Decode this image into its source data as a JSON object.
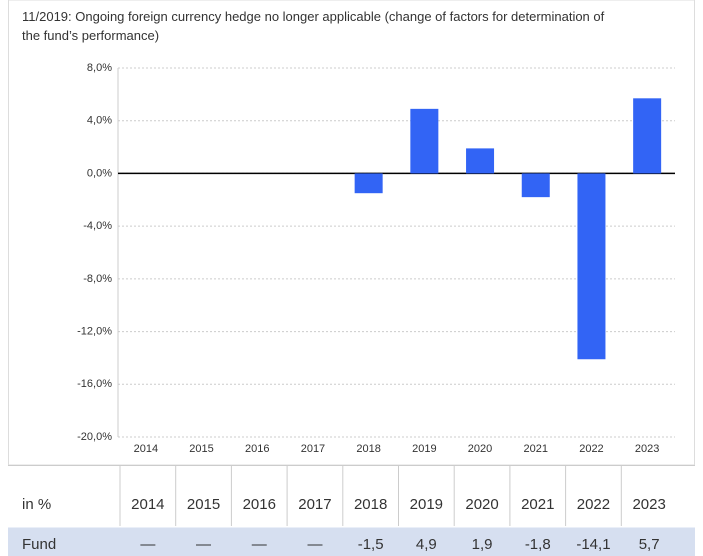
{
  "chart_data": {
    "type": "bar",
    "subtitle": "11/2019: Ongoing foreign currency hedge no longer applicable (change of factors for determination of the fund’s performance)",
    "categories": [
      "2014",
      "2015",
      "2016",
      "2017",
      "2018",
      "2019",
      "2020",
      "2021",
      "2022",
      "2023"
    ],
    "table_header": "in %",
    "series": [
      {
        "name": "Fund",
        "color": "#3264f5",
        "values": [
          null,
          null,
          null,
          null,
          -1.5,
          4.9,
          1.9,
          -1.8,
          -14.1,
          5.7
        ],
        "value_labels": [
          "—",
          "—",
          "—",
          "—",
          "-1,5",
          "4,9",
          "1,9",
          "-1,8",
          "-14,1",
          "5,7"
        ]
      }
    ],
    "ylim": [
      -20,
      8
    ],
    "yticks": [
      {
        "value": 8,
        "label": "8,0%"
      },
      {
        "value": 4,
        "label": "4,0%"
      },
      {
        "value": 0,
        "label": "0,0%"
      },
      {
        "value": -4,
        "label": "-4,0%"
      },
      {
        "value": -8,
        "label": "-8,0%"
      },
      {
        "value": -12,
        "label": "-12,0%"
      },
      {
        "value": -16,
        "label": "-16,0%"
      },
      {
        "value": -20,
        "label": "-20,0%"
      }
    ],
    "grid": true
  }
}
